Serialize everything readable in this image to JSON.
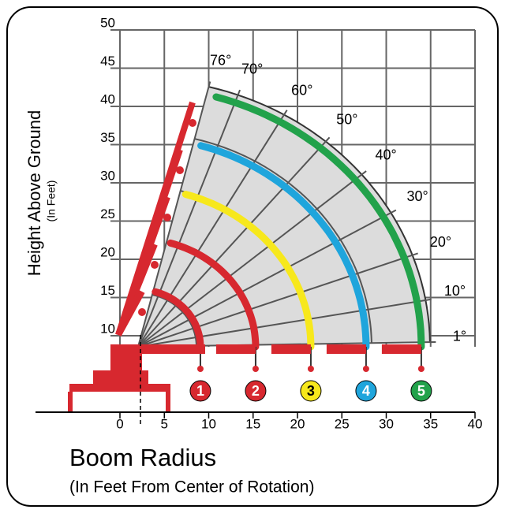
{
  "chart_data": {
    "type": "range",
    "y_axis_title": "Height Above Ground",
    "y_axis_subtitle": "(In Feet)",
    "x_axis_title": "Boom Radius",
    "x_axis_subtitle": "(In Feet From Center of Rotation)",
    "xlim": [
      0,
      40
    ],
    "ylim": [
      0,
      50
    ],
    "xticks": [
      0,
      5,
      10,
      15,
      20,
      25,
      30,
      35,
      40
    ],
    "yticks": [
      10,
      15,
      20,
      25,
      30,
      35,
      40,
      45,
      50
    ],
    "grid": true,
    "angles": [
      {
        "value": 76,
        "label": "76°"
      },
      {
        "value": 70,
        "label": "70°"
      },
      {
        "value": 60,
        "label": "60°"
      },
      {
        "value": 50,
        "label": "50°"
      },
      {
        "value": 40,
        "label": "40°"
      },
      {
        "value": 30,
        "label": "30°"
      },
      {
        "value": 20,
        "label": "20°"
      },
      {
        "value": 10,
        "label": "10°"
      },
      {
        "value": 1,
        "label": "1°"
      }
    ],
    "sections": [
      {
        "name": "1",
        "color": "#d7282f"
      },
      {
        "name": "2",
        "color": "#d7282f"
      },
      {
        "name": "3",
        "color": "#f7e81c"
      },
      {
        "name": "4",
        "color": "#1fa5dc"
      },
      {
        "name": "5",
        "color": "#22a24b"
      }
    ]
  }
}
